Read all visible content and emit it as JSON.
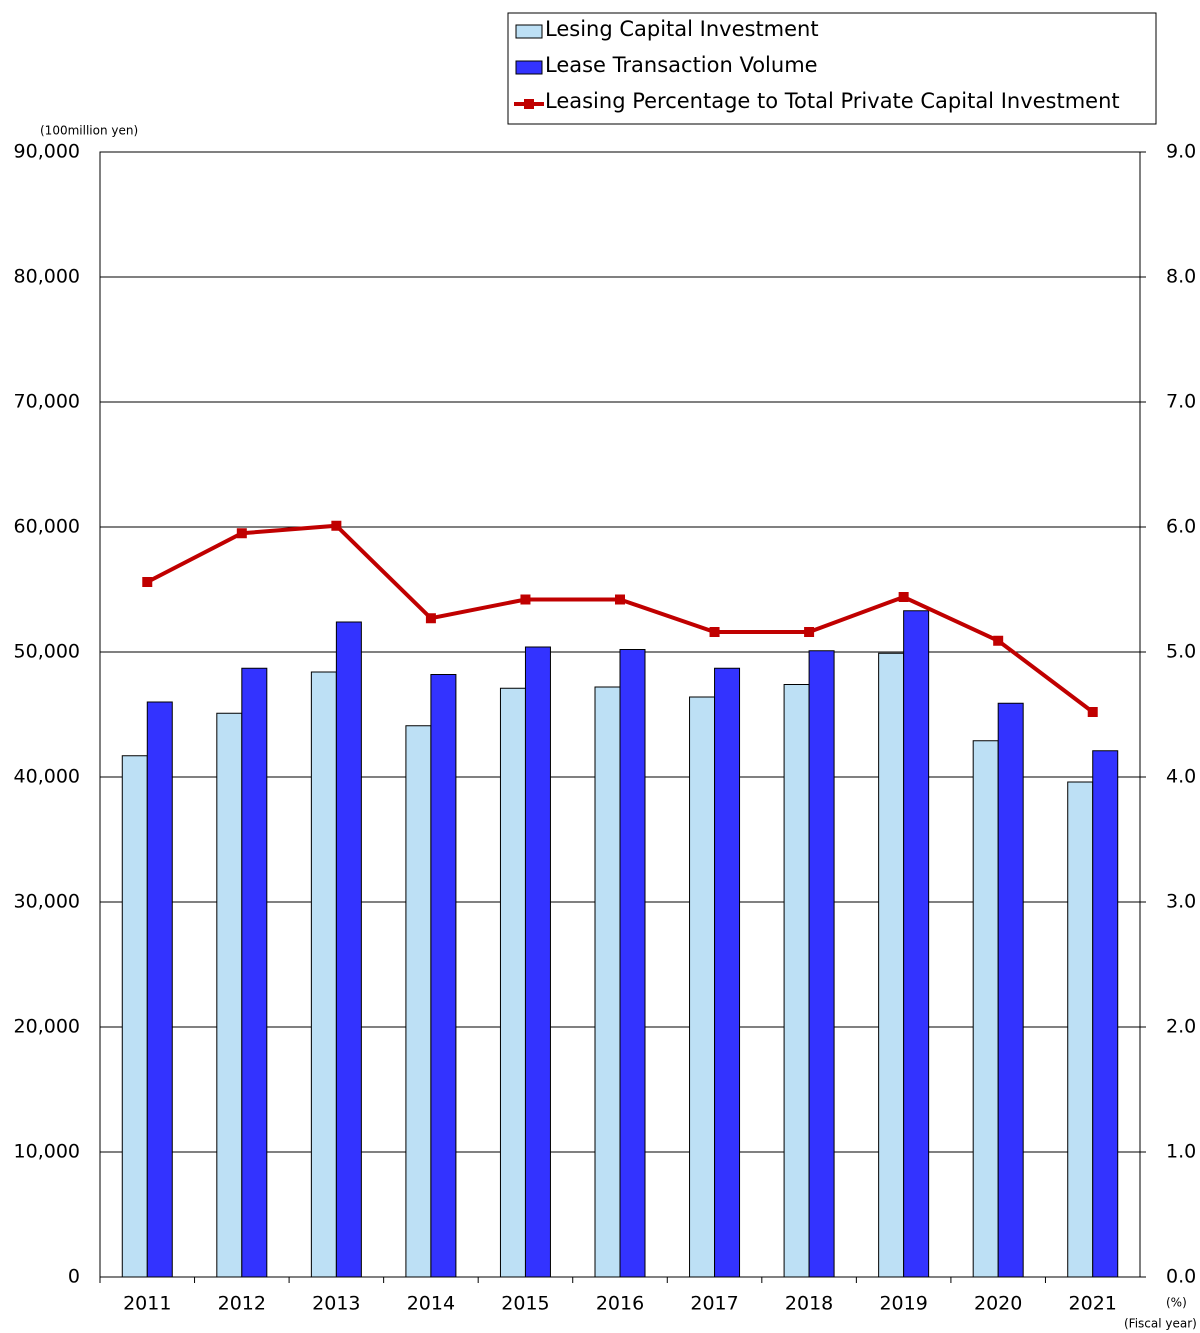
{
  "chart_data": {
    "type": "bar-line",
    "y_label": "(100million yen)",
    "y2_label": "(%)",
    "x_label": "(Fiscal year)",
    "categories": [
      "2011",
      "2012",
      "2013",
      "2014",
      "2015",
      "2016",
      "2017",
      "2018",
      "2019",
      "2020",
      "2021"
    ],
    "series": [
      {
        "name": "Lesing Capital Investment",
        "type": "bar",
        "color": "#bde0f5",
        "values": [
          41700,
          45100,
          48400,
          44100,
          47100,
          47200,
          46400,
          47400,
          49900,
          42900,
          39600
        ]
      },
      {
        "name": "Lease Transaction Volume",
        "type": "bar",
        "color": "#3333ff",
        "values": [
          46000,
          48700,
          52400,
          48200,
          50400,
          50200,
          48700,
          50100,
          53300,
          45900,
          42100
        ]
      },
      {
        "name": "Leasing Percentage to Total Private Capital Investment",
        "type": "line",
        "axis": "y2",
        "color": "#c00000",
        "values": [
          5.56,
          5.95,
          6.01,
          5.27,
          5.42,
          5.42,
          5.16,
          5.16,
          5.44,
          5.09,
          4.52
        ]
      }
    ],
    "ylim": [
      0,
      90000
    ],
    "yticks": [
      0,
      {
        "value": 10000,
        "label": "10,000"
      },
      {
        "value": 20000,
        "label": "20,000"
      },
      {
        "value": 30000,
        "label": "30,000"
      },
      {
        "value": 40000,
        "label": "40,000"
      },
      {
        "value": 50000,
        "label": "50,000"
      },
      {
        "value": 60000,
        "label": "60,000"
      },
      {
        "value": 70000,
        "label": "70,000"
      },
      {
        "value": 80000,
        "label": "80,000"
      },
      {
        "value": 90000,
        "label": "90,000"
      }
    ],
    "y2lim": [
      0,
      9
    ],
    "y2ticks": [
      {
        "value": 0,
        "label": "0.0"
      },
      {
        "value": 1,
        "label": "1.0"
      },
      {
        "value": 2,
        "label": "2.0"
      },
      {
        "value": 3,
        "label": "3.0"
      },
      {
        "value": 4,
        "label": "4.0"
      },
      {
        "value": 5,
        "label": "5.0"
      },
      {
        "value": 6,
        "label": "6.0"
      },
      {
        "value": 7,
        "label": "7.0"
      },
      {
        "value": 8,
        "label": "8.0"
      },
      {
        "value": 9,
        "label": "9.0"
      }
    ],
    "grid": true,
    "legend": "top-right"
  }
}
